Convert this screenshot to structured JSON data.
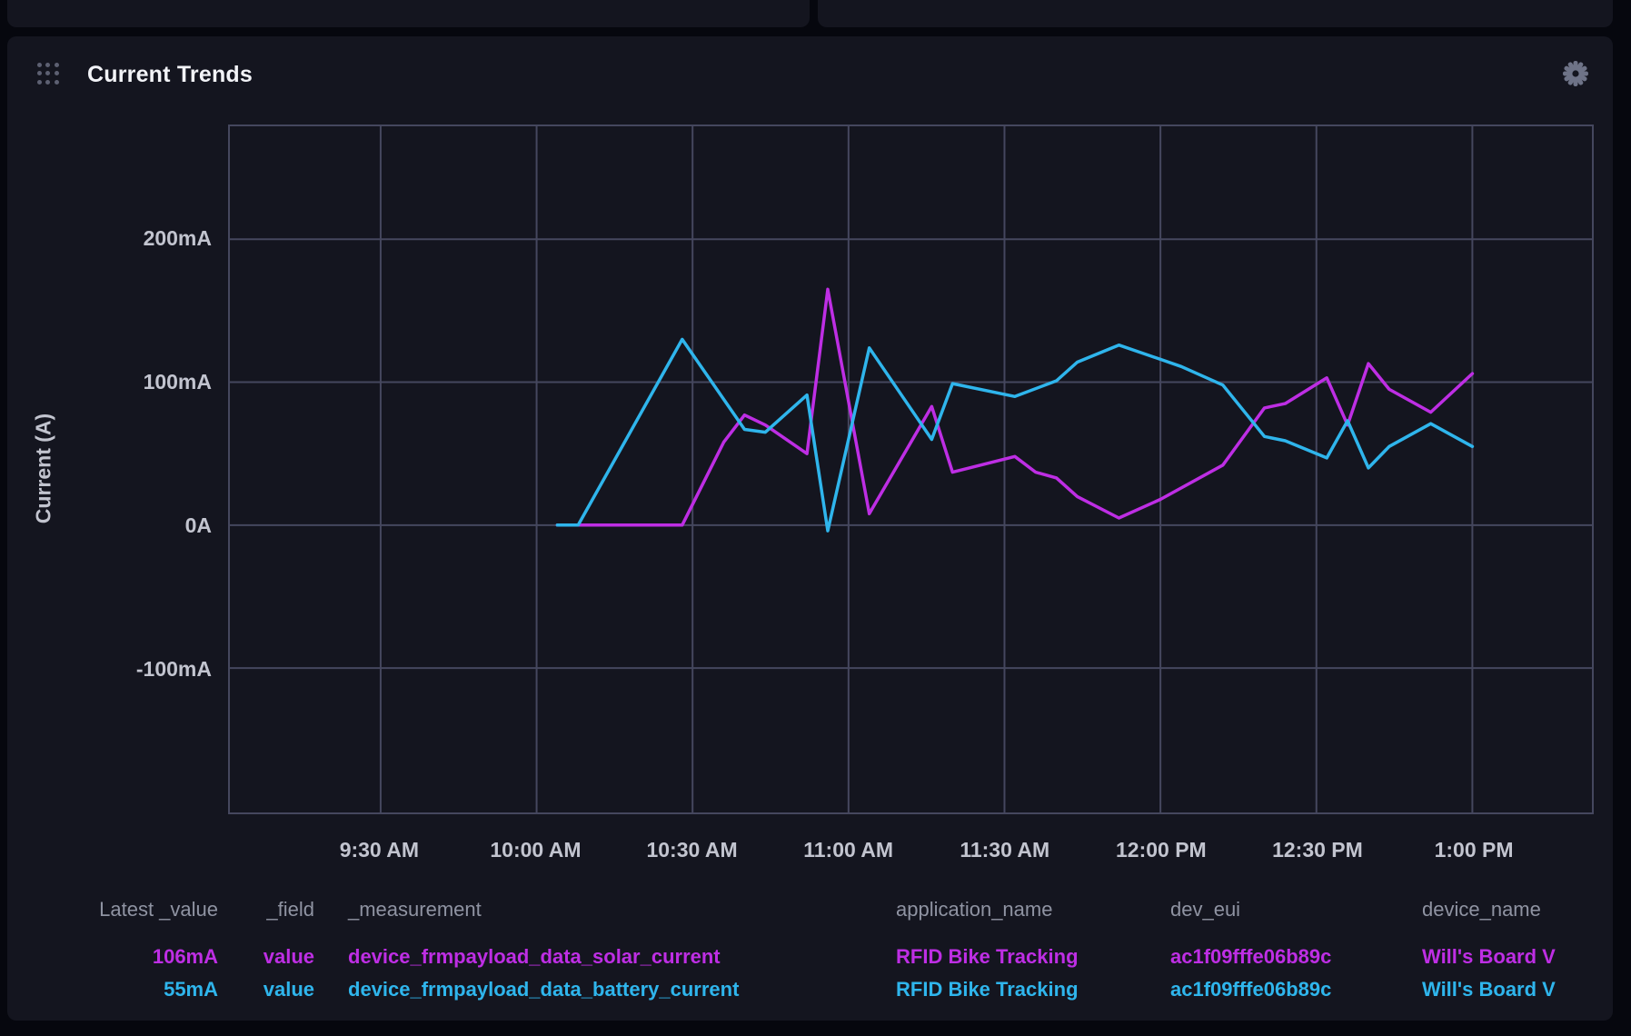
{
  "panel": {
    "title": "Current Trends",
    "header_icons": {
      "drag_handle": "grid-dots-icon",
      "settings": "gear-icon"
    }
  },
  "colors": {
    "page_bg": "#06070e",
    "panel_bg": "#14151f",
    "grid": "#45475e",
    "axis_text": "#c2c4cf",
    "legend_header_text": "#8f93a2",
    "solar_series": "#be2ee4",
    "battery_series": "#2fb5ec"
  },
  "chart_data": {
    "type": "line",
    "title": "Current Trends",
    "xlabel": "",
    "ylabel": "Current (A)",
    "x_unit": "minutes after 9:00 AM",
    "xlim": [
      1,
      263
    ],
    "ylim": [
      -201,
      279
    ],
    "grid": true,
    "legend_position": "bottom-table",
    "x_ticks": [
      {
        "min": 30,
        "label": "9:30 AM"
      },
      {
        "min": 60,
        "label": "10:00 AM"
      },
      {
        "min": 90,
        "label": "10:30 AM"
      },
      {
        "min": 120,
        "label": "11:00 AM"
      },
      {
        "min": 150,
        "label": "11:30 AM"
      },
      {
        "min": 180,
        "label": "12:00 PM"
      },
      {
        "min": 210,
        "label": "12:30 PM"
      },
      {
        "min": 240,
        "label": "1:00 PM"
      }
    ],
    "y_ticks": [
      {
        "value": 200,
        "label": "200mA"
      },
      {
        "value": 100,
        "label": "100mA"
      },
      {
        "value": 0,
        "label": "0A"
      },
      {
        "value": -100,
        "label": "-100mA"
      }
    ],
    "series": [
      {
        "name": "device_frmpayload_data_solar_current",
        "color": "#be2ee4",
        "unit": "mA",
        "points": [
          [
            64,
            0
          ],
          [
            88,
            0
          ],
          [
            96,
            58
          ],
          [
            100,
            77
          ],
          [
            104,
            70
          ],
          [
            112,
            50
          ],
          [
            116,
            165
          ],
          [
            124,
            8
          ],
          [
            136,
            83
          ],
          [
            140,
            37
          ],
          [
            152,
            48
          ],
          [
            156,
            37
          ],
          [
            160,
            33
          ],
          [
            164,
            20
          ],
          [
            172,
            5
          ],
          [
            180,
            18
          ],
          [
            192,
            42
          ],
          [
            200,
            82
          ],
          [
            204,
            85
          ],
          [
            212,
            103
          ],
          [
            216,
            70
          ],
          [
            220,
            113
          ],
          [
            224,
            95
          ],
          [
            232,
            79
          ],
          [
            240,
            106
          ]
        ]
      },
      {
        "name": "device_frmpayload_data_battery_current",
        "color": "#2fb5ec",
        "unit": "mA",
        "points": [
          [
            64,
            0
          ],
          [
            68,
            0
          ],
          [
            88,
            130
          ],
          [
            100,
            67
          ],
          [
            104,
            65
          ],
          [
            112,
            91
          ],
          [
            116,
            -4
          ],
          [
            124,
            124
          ],
          [
            136,
            60
          ],
          [
            140,
            99
          ],
          [
            152,
            90
          ],
          [
            160,
            101
          ],
          [
            164,
            114
          ],
          [
            172,
            126
          ],
          [
            180,
            116
          ],
          [
            184,
            111
          ],
          [
            192,
            98
          ],
          [
            200,
            62
          ],
          [
            204,
            59
          ],
          [
            212,
            47
          ],
          [
            216,
            73
          ],
          [
            220,
            40
          ],
          [
            224,
            55
          ],
          [
            232,
            71
          ],
          [
            240,
            55
          ]
        ]
      }
    ]
  },
  "legend": {
    "headers": [
      "Latest _value",
      "_field",
      "_measurement",
      "application_name",
      "dev_eui",
      "device_name"
    ],
    "rows": [
      {
        "color": "#be2ee4",
        "cells": [
          "106mA",
          "value",
          "device_frmpayload_data_solar_current",
          "RFID Bike Tracking",
          "ac1f09fffe06b89c",
          "Will's Board V"
        ]
      },
      {
        "color": "#2fb5ec",
        "cells": [
          "55mA",
          "value",
          "device_frmpayload_data_battery_current",
          "RFID Bike Tracking",
          "ac1f09fffe06b89c",
          "Will's Board V"
        ]
      }
    ]
  }
}
